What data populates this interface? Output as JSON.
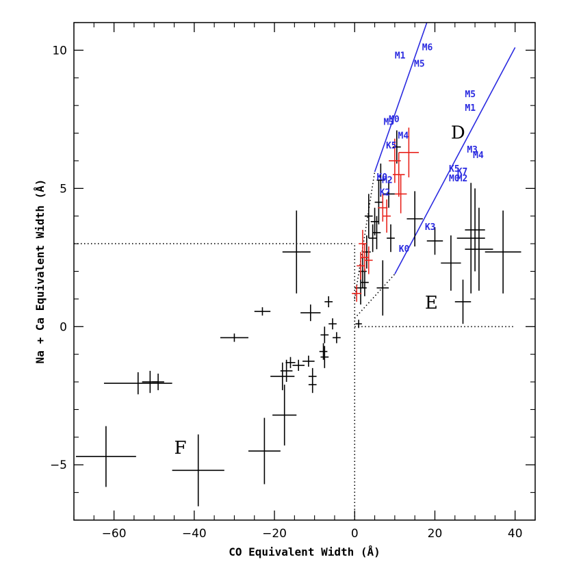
{
  "chart_data": {
    "type": "scatter",
    "title": "",
    "xlabel": "CO Equivalent Width (Å)",
    "ylabel": "Na + Ca Equivalent Width (Å)",
    "xlim": [
      -70,
      45
    ],
    "ylim": [
      -7,
      11
    ],
    "xticks": [
      -60,
      -40,
      -20,
      0,
      20,
      40
    ],
    "yticks": [
      -5,
      0,
      5,
      10
    ],
    "grid": false,
    "legend": "none",
    "colors": {
      "black": "#000000",
      "red": "#e8231c",
      "blue": "#2a2ae0"
    },
    "series": [
      {
        "color": "black",
        "points": [
          {
            "x": -62,
            "y": -4.7,
            "xerr": 7.5,
            "yerr": 1.1
          },
          {
            "x": -54,
            "y": -2.05,
            "xerr": 8.5,
            "yerr": 0.4
          },
          {
            "x": -51,
            "y": -2.0,
            "xerr": 2.0,
            "yerr": 0.4
          },
          {
            "x": -49,
            "y": -2.0,
            "xerr": 1.5,
            "yerr": 0.3
          },
          {
            "x": -39,
            "y": -5.2,
            "xerr": 6.5,
            "yerr": 1.3
          },
          {
            "x": -30,
            "y": -0.4,
            "xerr": 3.5,
            "yerr": 0.15
          },
          {
            "x": -23,
            "y": 0.55,
            "xerr": 2.0,
            "yerr": 0.15
          },
          {
            "x": -22.5,
            "y": -4.5,
            "xerr": 4.0,
            "yerr": 1.2
          },
          {
            "x": -17.5,
            "y": -3.2,
            "xerr": 3.0,
            "yerr": 1.1
          },
          {
            "x": -18,
            "y": -1.8,
            "xerr": 3.0,
            "yerr": 0.5
          },
          {
            "x": -17,
            "y": -1.6,
            "xerr": 1.5,
            "yerr": 0.4
          },
          {
            "x": -16,
            "y": -1.3,
            "xerr": 1.2,
            "yerr": 0.2
          },
          {
            "x": -14.5,
            "y": 2.7,
            "xerr": 3.5,
            "yerr": 1.5
          },
          {
            "x": -14,
            "y": -1.4,
            "xerr": 1.5,
            "yerr": 0.2
          },
          {
            "x": -11,
            "y": 0.5,
            "xerr": 2.5,
            "yerr": 0.3
          },
          {
            "x": -11.5,
            "y": -1.25,
            "xerr": 1.5,
            "yerr": 0.2
          },
          {
            "x": -10.5,
            "y": -1.8,
            "xerr": 1.0,
            "yerr": 0.3
          },
          {
            "x": -10.5,
            "y": -2.1,
            "xerr": 1.0,
            "yerr": 0.3
          },
          {
            "x": -7.8,
            "y": -0.9,
            "xerr": 1.0,
            "yerr": 0.3
          },
          {
            "x": -7.5,
            "y": -1.1,
            "xerr": 1.0,
            "yerr": 0.4
          },
          {
            "x": -7.5,
            "y": -0.3,
            "xerr": 1.0,
            "yerr": 0.3
          },
          {
            "x": -6.5,
            "y": 0.9,
            "xerr": 1.0,
            "yerr": 0.2
          },
          {
            "x": -5.5,
            "y": 0.1,
            "xerr": 1.0,
            "yerr": 0.2
          },
          {
            "x": -4.5,
            "y": -0.4,
            "xerr": 1.0,
            "yerr": 0.2
          },
          {
            "x": 1,
            "y": 0.1,
            "xerr": 0.8,
            "yerr": 0.15
          },
          {
            "x": 1.5,
            "y": 1.4,
            "xerr": 1.5,
            "yerr": 0.6
          },
          {
            "x": 2.0,
            "y": 2.0,
            "xerr": 1.0,
            "yerr": 0.6
          },
          {
            "x": 2.5,
            "y": 1.6,
            "xerr": 1.0,
            "yerr": 0.5
          },
          {
            "x": 3.0,
            "y": 2.7,
            "xerr": 1.0,
            "yerr": 0.6
          },
          {
            "x": 3.5,
            "y": 4.0,
            "xerr": 1.0,
            "yerr": 0.8
          },
          {
            "x": 4.5,
            "y": 3.2,
            "xerr": 1.0,
            "yerr": 0.5
          },
          {
            "x": 5.0,
            "y": 3.8,
            "xerr": 1.0,
            "yerr": 0.5
          },
          {
            "x": 5.5,
            "y": 3.4,
            "xerr": 1.0,
            "yerr": 0.6
          },
          {
            "x": 6.0,
            "y": 4.5,
            "xerr": 1.0,
            "yerr": 0.8
          },
          {
            "x": 6.5,
            "y": 5.3,
            "xerr": 1.0,
            "yerr": 0.6
          },
          {
            "x": 7.0,
            "y": 1.4,
            "xerr": 1.5,
            "yerr": 1.0
          },
          {
            "x": 8.5,
            "y": 4.8,
            "xerr": 1.5,
            "yerr": 0.5
          },
          {
            "x": 9.0,
            "y": 3.2,
            "xerr": 1.0,
            "yerr": 0.5
          },
          {
            "x": 10.5,
            "y": 6.5,
            "xerr": 1.0,
            "yerr": 0.6
          },
          {
            "x": 15.0,
            "y": 3.9,
            "xerr": 2.0,
            "yerr": 1.0
          },
          {
            "x": 20.0,
            "y": 3.1,
            "xerr": 2.0,
            "yerr": 0.5
          },
          {
            "x": 24.0,
            "y": 2.3,
            "xerr": 2.5,
            "yerr": 1.0
          },
          {
            "x": 27.0,
            "y": 0.9,
            "xerr": 2.0,
            "yerr": 0.8
          },
          {
            "x": 29.0,
            "y": 3.2,
            "xerr": 3.5,
            "yerr": 2.0
          },
          {
            "x": 30.0,
            "y": 3.5,
            "xerr": 2.5,
            "yerr": 1.5
          },
          {
            "x": 31.0,
            "y": 2.8,
            "xerr": 3.5,
            "yerr": 1.5
          },
          {
            "x": 37.0,
            "y": 2.7,
            "xerr": 4.5,
            "yerr": 1.5
          }
        ]
      },
      {
        "color": "red",
        "points": [
          {
            "x": 0.5,
            "y": 1.2,
            "xerr": 1.2,
            "yerr": 0.3
          },
          {
            "x": 1.5,
            "y": 2.2,
            "xerr": 1.0,
            "yerr": 0.5
          },
          {
            "x": 2.0,
            "y": 3.0,
            "xerr": 1.0,
            "yerr": 0.5
          },
          {
            "x": 2.5,
            "y": 2.5,
            "xerr": 1.0,
            "yerr": 0.5
          },
          {
            "x": 3.5,
            "y": 2.4,
            "xerr": 1.0,
            "yerr": 0.5
          },
          {
            "x": 7.0,
            "y": 4.3,
            "xerr": 1.2,
            "yerr": 0.5
          },
          {
            "x": 8.0,
            "y": 4.0,
            "xerr": 1.0,
            "yerr": 0.6
          },
          {
            "x": 10.0,
            "y": 6.0,
            "xerr": 1.5,
            "yerr": 0.8
          },
          {
            "x": 11.0,
            "y": 5.5,
            "xerr": 1.5,
            "yerr": 0.8
          },
          {
            "x": 11.5,
            "y": 4.8,
            "xerr": 1.5,
            "yerr": 0.7
          },
          {
            "x": 13.5,
            "y": 6.3,
            "xerr": 2.5,
            "yerr": 0.9
          }
        ]
      }
    ],
    "lines": [
      {
        "style": "solid",
        "color": "blue",
        "points": [
          [
            5,
            5.6
          ],
          [
            18,
            11
          ]
        ]
      },
      {
        "style": "solid",
        "color": "blue",
        "points": [
          [
            10,
            1.9
          ],
          [
            40,
            10.1
          ]
        ]
      },
      {
        "style": "dotted",
        "color": "black",
        "points": [
          [
            -70,
            3
          ],
          [
            0,
            3
          ]
        ]
      },
      {
        "style": "dotted",
        "color": "black",
        "points": [
          [
            0,
            -7
          ],
          [
            0,
            3
          ]
        ]
      },
      {
        "style": "dotted",
        "color": "black",
        "points": [
          [
            0,
            0
          ],
          [
            40,
            0
          ]
        ]
      },
      {
        "style": "dotted",
        "color": "black",
        "points": [
          [
            0,
            1
          ],
          [
            5,
            5.6
          ]
        ]
      },
      {
        "style": "dotted",
        "color": "black",
        "points": [
          [
            0,
            0.3
          ],
          [
            10,
            1.9
          ]
        ]
      }
    ],
    "region_labels": [
      {
        "text": "D",
        "x": 24,
        "y": 6.8
      },
      {
        "text": "E",
        "x": 17.5,
        "y": 0.65
      },
      {
        "text": "F",
        "x": -45,
        "y": -4.6
      }
    ],
    "spectral_type_labels": [
      {
        "text": "M1",
        "x": 10,
        "y": 9.7
      },
      {
        "text": "M6",
        "x": 16.8,
        "y": 10
      },
      {
        "text": "M5",
        "x": 14.8,
        "y": 9.4
      },
      {
        "text": "M0",
        "x": 8.5,
        "y": 7.4
      },
      {
        "text": "M3",
        "x": 7.2,
        "y": 7.3
      },
      {
        "text": "M4",
        "x": 10.8,
        "y": 6.8
      },
      {
        "text": "K5",
        "x": 7.8,
        "y": 6.45
      },
      {
        "text": "K0",
        "x": 5.5,
        "y": 5.3
      },
      {
        "text": "M2",
        "x": 6.8,
        "y": 5.2
      },
      {
        "text": "K2",
        "x": 6.2,
        "y": 4.75
      },
      {
        "text": "M5",
        "x": 27.5,
        "y": 8.3
      },
      {
        "text": "M1",
        "x": 27.5,
        "y": 7.8
      },
      {
        "text": "M3",
        "x": 28,
        "y": 6.3
      },
      {
        "text": "M4",
        "x": 29.5,
        "y": 6.1
      },
      {
        "text": "K5",
        "x": 23.5,
        "y": 5.6
      },
      {
        "text": "K7",
        "x": 25.5,
        "y": 5.5
      },
      {
        "text": "M0",
        "x": 23.5,
        "y": 5.25
      },
      {
        "text": "M2",
        "x": 25.5,
        "y": 5.25
      },
      {
        "text": "K3",
        "x": 17.5,
        "y": 3.5
      },
      {
        "text": "K0",
        "x": 11.0,
        "y": 2.7
      }
    ]
  }
}
